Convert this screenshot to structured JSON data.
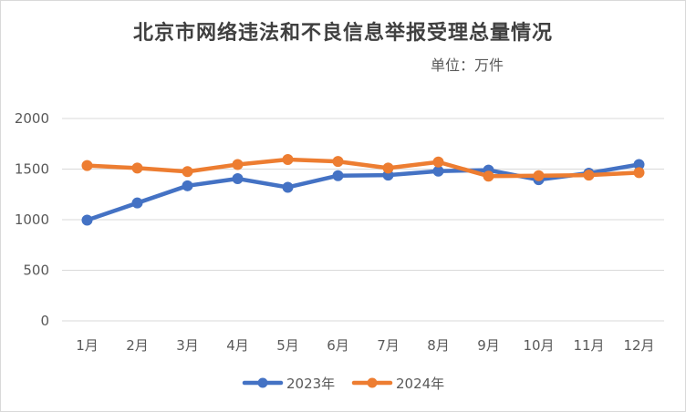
{
  "chart_data": {
    "type": "line",
    "title": "北京市网络违法和不良信息举报受理总量情况",
    "unit": "单位：万件",
    "categories": [
      "1月",
      "2月",
      "3月",
      "4月",
      "5月",
      "6月",
      "7月",
      "8月",
      "9月",
      "10月",
      "11月",
      "12月"
    ],
    "series": [
      {
        "name": "2023年",
        "color": "#4472c4",
        "values": [
          995,
          1165,
          1335,
          1405,
          1320,
          1435,
          1440,
          1480,
          1490,
          1395,
          1460,
          1545
        ]
      },
      {
        "name": "2024年",
        "color": "#ed7d31",
        "values": [
          1535,
          1510,
          1475,
          1545,
          1595,
          1575,
          1510,
          1570,
          1430,
          1435,
          1440,
          1465
        ]
      }
    ],
    "ylim": [
      0,
      2000
    ],
    "yticks": [
      0,
      500,
      1000,
      1500,
      2000
    ],
    "grid": true,
    "legend": "bottom"
  }
}
